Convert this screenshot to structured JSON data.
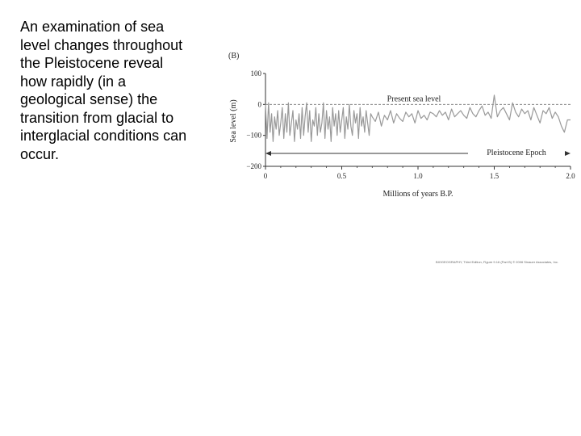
{
  "slide": {
    "paragraph": "An examination of sea level changes throughout the Pleistocene reveal how rapidly (in a geological sense) the transition from glacial to interglacial conditions can occur."
  },
  "credit": {
    "text": "BIOGEOGRAPHY, Third Edition, Figure 9.16 (Part B) © 2006 Sinauer Associates, Inc."
  },
  "chart_data": {
    "type": "line",
    "panel_label": "(B)",
    "title": "",
    "xlabel": "Millions of years B.P.",
    "ylabel": "Sea level (m)",
    "xlim": [
      0,
      2.0
    ],
    "ylim": [
      -200,
      100
    ],
    "x_ticks": [
      0,
      0.5,
      1.0,
      1.5,
      2.0
    ],
    "x_tick_labels": [
      "0",
      "0.5",
      "1.0",
      "1.5",
      "2.0"
    ],
    "y_ticks": [
      100,
      0,
      -100,
      -200
    ],
    "y_tick_labels": [
      "100",
      "0",
      "−100",
      "−200"
    ],
    "reference_line": {
      "label": "Present sea level",
      "y": 0
    },
    "span_annotation": {
      "label": "Pleistocene Epoch",
      "x_start": 0,
      "x_end": 2.0
    },
    "series": [
      {
        "color": "#999999",
        "x": [
          0.0,
          0.01,
          0.02,
          0.03,
          0.04,
          0.05,
          0.06,
          0.07,
          0.08,
          0.09,
          0.1,
          0.11,
          0.12,
          0.13,
          0.14,
          0.15,
          0.16,
          0.17,
          0.18,
          0.19,
          0.2,
          0.21,
          0.22,
          0.23,
          0.24,
          0.25,
          0.26,
          0.27,
          0.28,
          0.29,
          0.3,
          0.31,
          0.32,
          0.33,
          0.34,
          0.35,
          0.36,
          0.37,
          0.38,
          0.39,
          0.4,
          0.41,
          0.42,
          0.43,
          0.44,
          0.45,
          0.46,
          0.47,
          0.48,
          0.49,
          0.5,
          0.51,
          0.52,
          0.53,
          0.54,
          0.55,
          0.56,
          0.57,
          0.58,
          0.59,
          0.6,
          0.61,
          0.62,
          0.63,
          0.64,
          0.65,
          0.66,
          0.67,
          0.68,
          0.69,
          0.7,
          0.72,
          0.74,
          0.76,
          0.78,
          0.8,
          0.82,
          0.84,
          0.86,
          0.88,
          0.9,
          0.92,
          0.94,
          0.96,
          0.98,
          1.0,
          1.02,
          1.04,
          1.06,
          1.08,
          1.1,
          1.12,
          1.14,
          1.16,
          1.18,
          1.2,
          1.22,
          1.24,
          1.26,
          1.28,
          1.3,
          1.32,
          1.34,
          1.36,
          1.38,
          1.4,
          1.42,
          1.44,
          1.46,
          1.48,
          1.5,
          1.52,
          1.54,
          1.56,
          1.58,
          1.6,
          1.62,
          1.64,
          1.66,
          1.68,
          1.7,
          1.72,
          1.74,
          1.76,
          1.78,
          1.8,
          1.82,
          1.84,
          1.86,
          1.88,
          1.9,
          1.92,
          1.94,
          1.96,
          1.98,
          2.0
        ],
        "y": [
          0,
          -110,
          5,
          -90,
          -30,
          -120,
          -40,
          -80,
          -20,
          -100,
          -60,
          -10,
          -110,
          -30,
          -90,
          5,
          -100,
          -60,
          -20,
          -120,
          -50,
          -80,
          -30,
          -110,
          -10,
          -100,
          -40,
          5,
          -90,
          -20,
          -120,
          -50,
          -70,
          -10,
          -100,
          -30,
          -90,
          -60,
          5,
          -110,
          -20,
          -80,
          -40,
          -120,
          -10,
          -70,
          -30,
          -100,
          -20,
          -90,
          -50,
          -10,
          -110,
          -40,
          -80,
          0,
          -70,
          -100,
          -20,
          -60,
          -30,
          -110,
          -10,
          -70,
          -40,
          -90,
          -20,
          -60,
          -100,
          -30,
          -40,
          -55,
          -25,
          -70,
          -35,
          -50,
          -20,
          -60,
          -30,
          -45,
          -55,
          -25,
          -40,
          -30,
          -60,
          -20,
          -45,
          -35,
          -50,
          -25,
          -30,
          -40,
          -20,
          -35,
          -25,
          -50,
          -15,
          -40,
          -30,
          -20,
          -35,
          -45,
          -10,
          -30,
          -40,
          -20,
          -5,
          -35,
          -25,
          -45,
          30,
          -40,
          -20,
          -10,
          -30,
          -50,
          5,
          -25,
          -40,
          -15,
          -30,
          -20,
          -50,
          -10,
          -35,
          -60,
          -20,
          -30,
          -10,
          -45,
          -25,
          -40,
          -70,
          -90,
          -50,
          -50
        ]
      }
    ]
  }
}
